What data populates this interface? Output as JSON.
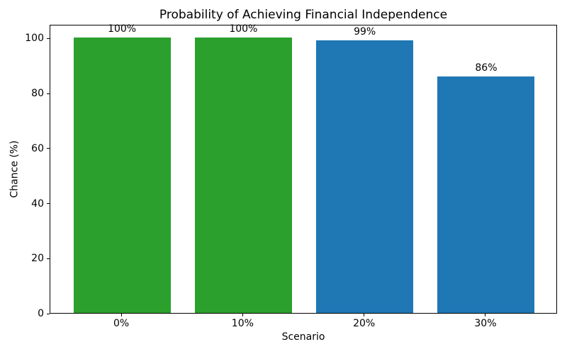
{
  "chart_data": {
    "type": "bar",
    "title": "Probability of Achieving Financial Independence",
    "xlabel": "Scenario",
    "ylabel": "Chance (%)",
    "categories": [
      "0%",
      "10%",
      "20%",
      "30%"
    ],
    "values": [
      100,
      100,
      99,
      86
    ],
    "bar_labels": [
      "100%",
      "100%",
      "99%",
      "86%"
    ],
    "bar_colors": [
      "#2ca02c",
      "#2ca02c",
      "#1f77b4",
      "#1f77b4"
    ],
    "ylim": [
      0,
      105
    ],
    "yticks": [
      0,
      20,
      40,
      60,
      80,
      100
    ],
    "bar_width_fraction": 0.8,
    "grid": false,
    "legend_position": "none",
    "background_color": "#ffffff",
    "text_color": "#000000",
    "spine_color": "#000000"
  }
}
